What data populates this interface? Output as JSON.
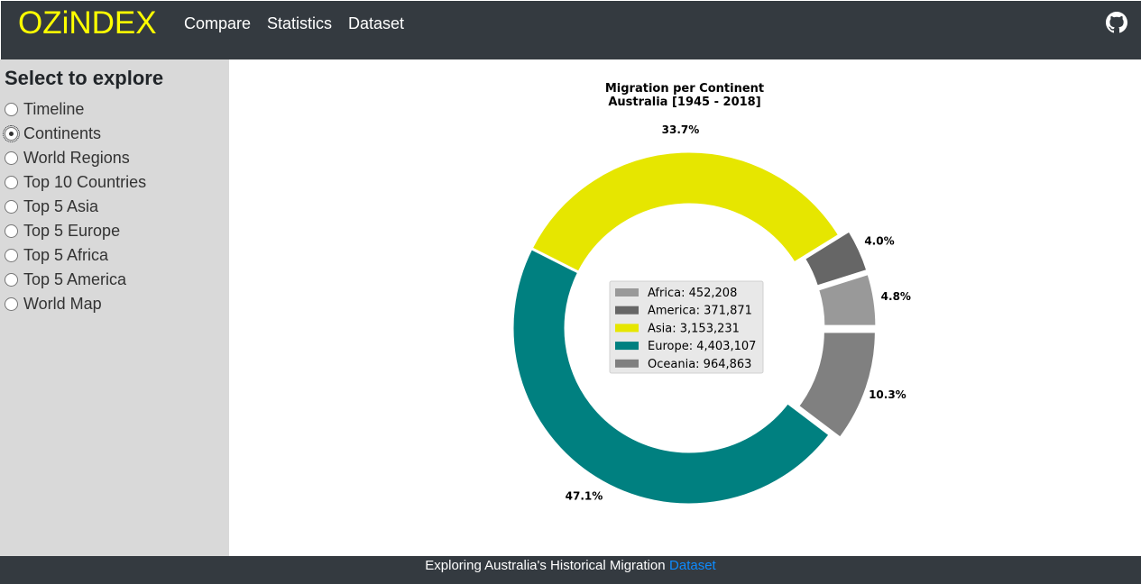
{
  "navbar": {
    "brand": "OZiNDEX",
    "links": [
      "Compare",
      "Statistics",
      "Dataset"
    ],
    "github_icon": "github-icon"
  },
  "sidebar": {
    "title": "Select to explore",
    "options": [
      "Timeline",
      "Continents",
      "World Regions",
      "Top 10 Countries",
      "Top 5 Asia",
      "Top 5 Europe",
      "Top 5 Africa",
      "Top 5 America",
      "World Map"
    ],
    "selected": "Continents"
  },
  "chart_data": {
    "type": "pie",
    "variant": "donut",
    "title": "Migration per Continent",
    "subtitle": "Australia [1945 - 2018]",
    "legend_placement": "center",
    "slices": [
      {
        "name": "Africa",
        "value": 452208,
        "value_label": "452,208",
        "percent_label": "4.8%",
        "color": "#999999"
      },
      {
        "name": "America",
        "value": 371871,
        "value_label": "371,871",
        "percent_label": "4.0%",
        "color": "#666666"
      },
      {
        "name": "Asia",
        "value": 3153231,
        "value_label": "3,153,231",
        "percent_label": "33.7%",
        "color": "#e6e600"
      },
      {
        "name": "Europe",
        "value": 4403107,
        "value_label": "4,403,107",
        "percent_label": "47.1%",
        "color": "#008080"
      },
      {
        "name": "Oceania",
        "value": 964863,
        "value_label": "964,863",
        "percent_label": "10.3%",
        "color": "#808080"
      }
    ]
  },
  "footer": {
    "text": "Exploring Australia's Historical Migration",
    "link": "Dataset"
  }
}
